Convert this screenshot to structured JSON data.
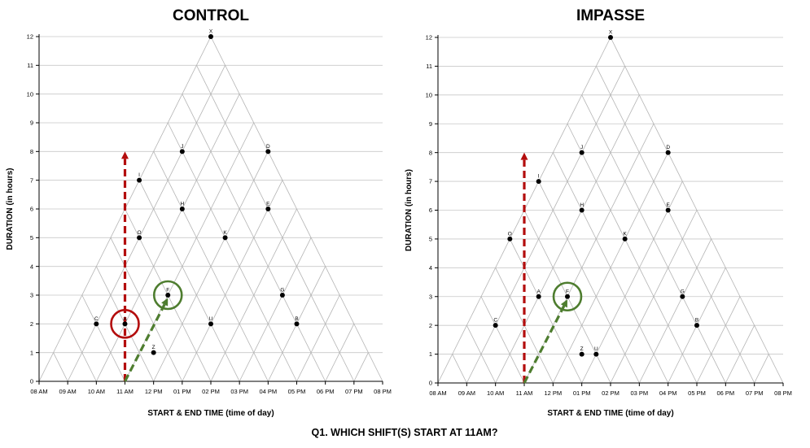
{
  "question": "Q1. WHICH SHIFT(S) START AT 11AM?",
  "colors": {
    "red": "#b30d0d",
    "green": "#4e7d2f",
    "point": "#000000",
    "grid": "#c8c8c8",
    "triangle": "#b4b4b4"
  },
  "chart_data": [
    {
      "type": "scatter",
      "title": "CONTROL",
      "xlabel": "START & END TIME (time of day)",
      "ylabel": "DURATION (in hours)",
      "xlim": [
        8,
        20
      ],
      "ylim": [
        0,
        12
      ],
      "x_ticks": [
        "08 AM",
        "09 AM",
        "10 AM",
        "11 AM",
        "12 PM",
        "01 PM",
        "02 PM",
        "03 PM",
        "04 PM",
        "05 PM",
        "06 PM",
        "07 PM",
        "08 PM"
      ],
      "y_ticks": [
        "0",
        "1",
        "2",
        "3",
        "4",
        "5",
        "6",
        "7",
        "8",
        "9",
        "10",
        "11",
        "12"
      ],
      "grid": "triangular",
      "points": [
        {
          "label": "X",
          "start": 8,
          "end": 20,
          "duration": 12
        },
        {
          "label": "J",
          "start": 9,
          "end": 17,
          "duration": 8
        },
        {
          "label": "D",
          "start": 12,
          "end": 20,
          "duration": 8
        },
        {
          "label": "I",
          "start": 8,
          "end": 15,
          "duration": 7
        },
        {
          "label": "H",
          "start": 10,
          "end": 16,
          "duration": 6
        },
        {
          "label": "E",
          "start": 13,
          "end": 19,
          "duration": 6
        },
        {
          "label": "O",
          "start": 9,
          "end": 14,
          "duration": 5
        },
        {
          "label": "K",
          "start": 12,
          "end": 17,
          "duration": 5
        },
        {
          "label": "F",
          "start": 11,
          "end": 14,
          "duration": 3
        },
        {
          "label": "G",
          "start": 15,
          "end": 18,
          "duration": 3
        },
        {
          "label": "C",
          "start": 9,
          "end": 11,
          "duration": 2
        },
        {
          "label": "A",
          "start": 10,
          "end": 12,
          "duration": 2
        },
        {
          "label": "U",
          "start": 13,
          "end": 15,
          "duration": 2
        },
        {
          "label": "B",
          "start": 16,
          "end": 18,
          "duration": 2
        },
        {
          "label": "Z",
          "start": 11.5,
          "end": 12.5,
          "duration": 1
        }
      ],
      "annotations": [
        {
          "type": "arrow",
          "color": "red",
          "from": [
            11,
            0
          ],
          "to": [
            11,
            8
          ]
        },
        {
          "type": "arrow",
          "color": "green",
          "from": [
            11,
            0
          ],
          "to": [
            12.5,
            2.9
          ]
        },
        {
          "type": "circle",
          "color": "red",
          "at": "A"
        },
        {
          "type": "circle",
          "color": "green",
          "at": "F"
        }
      ]
    },
    {
      "type": "scatter",
      "title": "IMPASSE",
      "xlabel": "START & END TIME (time of day)",
      "ylabel": "DURATION (in hours)",
      "xlim": [
        8,
        20
      ],
      "ylim": [
        0,
        12
      ],
      "x_ticks": [
        "08 AM",
        "09 AM",
        "10 AM",
        "11 AM",
        "12 PM",
        "01 PM",
        "02 PM",
        "03 PM",
        "04 PM",
        "05 PM",
        "06 PM",
        "07 PM",
        "08 PM"
      ],
      "y_ticks": [
        "0",
        "1",
        "2",
        "3",
        "4",
        "5",
        "6",
        "7",
        "8",
        "9",
        "10",
        "11",
        "12"
      ],
      "grid": "triangular",
      "points": [
        {
          "label": "X",
          "start": 8,
          "end": 20,
          "duration": 12
        },
        {
          "label": "J",
          "start": 9,
          "end": 17,
          "duration": 8
        },
        {
          "label": "D",
          "start": 12,
          "end": 20,
          "duration": 8
        },
        {
          "label": "I",
          "start": 8,
          "end": 15,
          "duration": 7
        },
        {
          "label": "H",
          "start": 10,
          "end": 16,
          "duration": 6
        },
        {
          "label": "E",
          "start": 13,
          "end": 19,
          "duration": 6
        },
        {
          "label": "O",
          "start": 8,
          "end": 13,
          "duration": 5
        },
        {
          "label": "K",
          "start": 12,
          "end": 17,
          "duration": 5
        },
        {
          "label": "A",
          "start": 10,
          "end": 13,
          "duration": 3
        },
        {
          "label": "F",
          "start": 11,
          "end": 14,
          "duration": 3
        },
        {
          "label": "G",
          "start": 15,
          "end": 18,
          "duration": 3
        },
        {
          "label": "C",
          "start": 9,
          "end": 11,
          "duration": 2
        },
        {
          "label": "B",
          "start": 16,
          "end": 18,
          "duration": 2
        },
        {
          "label": "Z",
          "start": 12.5,
          "end": 13.5,
          "duration": 1
        },
        {
          "label": "U",
          "start": 13,
          "end": 14,
          "duration": 1
        }
      ],
      "annotations": [
        {
          "type": "arrow",
          "color": "red",
          "from": [
            11,
            0
          ],
          "to": [
            11,
            8
          ]
        },
        {
          "type": "arrow",
          "color": "green",
          "from": [
            11,
            0
          ],
          "to": [
            12.5,
            2.9
          ]
        },
        {
          "type": "circle",
          "color": "green",
          "at": "F"
        }
      ]
    }
  ]
}
